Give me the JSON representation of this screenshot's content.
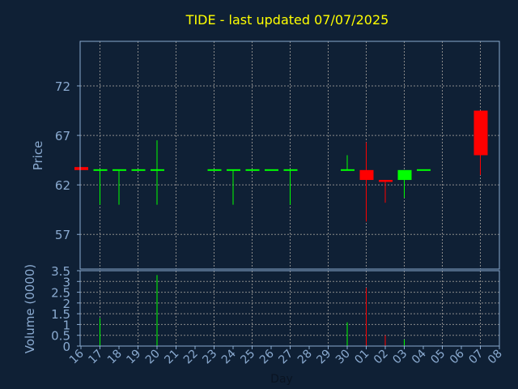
{
  "chart_data": {
    "type": "candlestick",
    "title": "TIDE - last updated 07/07/2025",
    "xlabel": "Day",
    "ylabel": "Price",
    "volume_label": "Volume (0000)",
    "price_ticks": [
      "72",
      "67",
      "62",
      "57"
    ],
    "volume_ticks": [
      "3.5",
      "3",
      "2.5",
      "2",
      "1.5",
      "1",
      "0.5",
      "0"
    ],
    "ylim": [
      53.5,
      76.5
    ],
    "volume_ylim": [
      0,
      3.5
    ],
    "grid": true,
    "colors": {
      "background": "#0f2035",
      "axis": "#8aaad0",
      "grid": "#8a8a8a",
      "title": "#ffff00",
      "up": "#00ff00",
      "down": "#ff0000"
    },
    "days": [
      "16",
      "17",
      "18",
      "19",
      "20",
      "21",
      "22",
      "23",
      "24",
      "25",
      "26",
      "27",
      "28",
      "29",
      "30",
      "01",
      "02",
      "03",
      "04",
      "05",
      "06",
      "07",
      "08"
    ],
    "candles": [
      {
        "day": "16",
        "open": 63.8,
        "high": 63.8,
        "low": 63.5,
        "close": 63.5,
        "volume": 0
      },
      {
        "day": "17",
        "open": 63.5,
        "high": 63.5,
        "low": 60.0,
        "close": 63.5,
        "volume": 1.3
      },
      {
        "day": "18",
        "open": 63.5,
        "high": 63.5,
        "low": 60.0,
        "close": 63.5,
        "volume": 0
      },
      {
        "day": "19",
        "open": 63.5,
        "high": 63.5,
        "low": 63.5,
        "close": 63.5,
        "volume": 0
      },
      {
        "day": "20",
        "open": 63.5,
        "high": 66.5,
        "low": 60.0,
        "close": 63.5,
        "volume": 3.3
      },
      {
        "day": "23",
        "open": 63.5,
        "high": 63.5,
        "low": 63.5,
        "close": 63.5,
        "volume": 0
      },
      {
        "day": "24",
        "open": 63.5,
        "high": 63.5,
        "low": 60.0,
        "close": 63.5,
        "volume": 0
      },
      {
        "day": "25",
        "open": 63.5,
        "high": 63.5,
        "low": 63.5,
        "close": 63.5,
        "volume": 0
      },
      {
        "day": "26",
        "open": 63.5,
        "high": 63.5,
        "low": 63.5,
        "close": 63.5,
        "volume": 0
      },
      {
        "day": "27",
        "open": 63.5,
        "high": 63.5,
        "low": 60.0,
        "close": 63.5,
        "volume": 0
      },
      {
        "day": "30",
        "open": 63.5,
        "high": 65.0,
        "low": 63.5,
        "close": 63.5,
        "volume": 1.1
      },
      {
        "day": "01",
        "open": 63.5,
        "high": 66.3,
        "low": 58.3,
        "close": 62.5,
        "volume": 2.7
      },
      {
        "day": "02",
        "open": 62.5,
        "high": 62.5,
        "low": 60.2,
        "close": 62.3,
        "volume": 0.5
      },
      {
        "day": "03",
        "open": 62.5,
        "high": 63.5,
        "low": 60.7,
        "close": 63.5,
        "volume": 0.3
      },
      {
        "day": "04",
        "open": 63.5,
        "high": 63.5,
        "low": 63.5,
        "close": 63.5,
        "volume": 0
      },
      {
        "day": "07",
        "open": 69.5,
        "high": 69.5,
        "low": 63.0,
        "close": 65.0,
        "volume": 0
      }
    ]
  }
}
